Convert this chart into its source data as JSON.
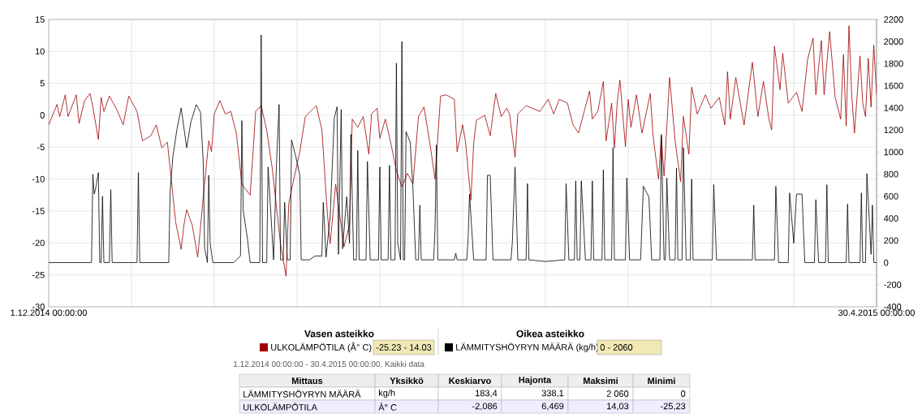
{
  "chart_data": {
    "type": "line",
    "grid": true,
    "legend": "bottom",
    "xlim": [
      "2014-12-01",
      "2015-04-30"
    ],
    "xticks": [
      {
        "value": "2014-12-01",
        "label": "1.12.2014 00:00:00"
      },
      {
        "value": "2014-12-16",
        "label": null
      },
      {
        "value": "2014-12-31",
        "label": null
      },
      {
        "value": "2015-01-15",
        "label": null
      },
      {
        "value": "2015-01-30",
        "label": null
      },
      {
        "value": "2015-02-14",
        "label": null
      },
      {
        "value": "2015-03-01",
        "label": null
      },
      {
        "value": "2015-03-16",
        "label": null
      },
      {
        "value": "2015-03-31",
        "label": null
      },
      {
        "value": "2015-04-15",
        "label": null
      },
      {
        "value": "2015-04-30",
        "label": "30.4.2015 00:00:00"
      }
    ],
    "ylim": [
      -30,
      15
    ],
    "yticks": [
      -30,
      -25,
      -20,
      -15,
      -10,
      -5,
      0,
      5,
      10,
      15
    ],
    "y2lim": [
      -400,
      2200
    ],
    "y2ticks": [
      -400,
      -200,
      0,
      200,
      400,
      600,
      800,
      1000,
      1200,
      1400,
      1600,
      1800,
      2000,
      2200
    ],
    "series": [
      {
        "name": "ULKOLÄMPÖTILA (Â° C)",
        "color": "#a00000",
        "x": [
          "2014-12-01",
          "2014-12-02",
          "2014-12-02T12:00",
          "2014-12-03",
          "2014-12-04",
          "2014-12-04T12:00",
          "2014-12-06",
          "2014-12-06T12:00",
          "2014-12-07T12:00",
          "2014-12-08T12:00",
          "2014-12-09",
          "2014-12-10",
          "2014-12-10T12:00",
          "2014-12-11",
          "2014-12-12",
          "2014-12-13T12:00",
          "2014-12-14T12:00",
          "2014-12-15T12:00",
          "2014-12-17",
          "2014-12-18",
          "2014-12-19T12:00",
          "2014-12-20T12:00",
          "2014-12-21T12:00",
          "2014-12-22T12:00",
          "2014-12-23",
          "2014-12-24",
          "2014-12-25",
          "2014-12-25T12:00",
          "2014-12-26",
          "2014-12-27",
          "2014-12-28",
          "2014-12-29",
          "2014-12-30",
          "2014-12-30T12:00",
          "2014-12-31",
          "2015-01-01",
          "2015-01-02",
          "2015-01-03",
          "2015-01-04",
          "2015-01-05",
          "2015-01-06T12:00",
          "2015-01-07",
          "2015-01-07T12:00",
          "2015-01-08T12:00",
          "2015-01-09T12:00",
          "2015-01-10T12:00",
          "2015-01-12",
          "2015-01-13",
          "2015-01-13T12:00",
          "2015-01-14",
          "2015-01-15T12:00",
          "2015-01-16T12:00",
          "2015-01-18",
          "2015-01-18T12:00",
          "2015-01-19T12:00",
          "2015-01-20T12:00",
          "2015-01-21",
          "2015-01-22",
          "2015-01-23T12:00",
          "2015-01-24T12:00",
          "2015-01-25",
          "2015-01-26",
          "2015-01-27",
          "2015-01-28",
          "2015-01-28T12:00",
          "2015-01-29T12:00",
          "2015-01-30",
          "2015-01-31",
          "2015-02-01",
          "2015-02-02",
          "2015-02-03",
          "2015-02-04",
          "2015-02-05",
          "2015-02-06",
          "2015-02-07",
          "2015-02-08",
          "2015-02-09",
          "2015-02-10",
          "2015-02-11",
          "2015-02-12T12:00",
          "2015-02-13",
          "2015-02-14",
          "2015-02-14T12:00",
          "2015-02-15T12:00",
          "2015-02-16",
          "2015-02-16T12:00",
          "2015-02-18",
          "2015-02-19",
          "2015-02-20",
          "2015-02-21",
          "2015-02-22",
          "2015-02-22T12:00",
          "2015-02-23T12:00",
          "2015-02-24",
          "2015-02-25T12:00",
          "2015-02-28",
          "2015-03-01T12:00",
          "2015-03-02T12:00",
          "2015-03-03T12:00",
          "2015-03-05",
          "2015-03-06",
          "2015-03-07",
          "2015-03-09",
          "2015-03-09T12:00",
          "2015-03-10T12:00",
          "2015-03-11T12:00",
          "2015-03-12",
          "2015-03-13",
          "2015-03-13T12:00",
          "2015-03-14",
          "2015-03-14T12:00",
          "2015-03-15T12:00",
          "2015-03-16",
          "2015-03-16T12:00",
          "2015-03-17T12:00",
          "2015-03-18T12:00",
          "2015-03-20",
          "2015-03-20T12:00",
          "2015-03-21T12:00",
          "2015-03-22",
          "2015-03-22T12:00",
          "2015-03-23T12:00",
          "2015-03-24T12:00",
          "2015-03-25T12:00",
          "2015-03-26",
          "2015-03-27",
          "2015-03-27T12:00",
          "2015-03-28T12:00",
          "2015-03-30",
          "2015-03-31",
          "2015-04-01T12:00",
          "2015-04-02T12:00",
          "2015-04-03",
          "2015-04-03T12:00",
          "2015-04-04T12:00",
          "2015-04-06",
          "2015-04-07T12:00",
          "2015-04-08T12:00",
          "2015-04-09T12:00",
          "2015-04-10T12:00",
          "2015-04-11",
          "2015-04-11T12:00",
          "2015-04-12T12:00",
          "2015-04-13",
          "2015-04-14",
          "2015-04-15T12:00",
          "2015-04-16T12:00",
          "2015-04-17T12:00",
          "2015-04-18T12:00",
          "2015-04-19",
          "2015-04-20",
          "2015-04-20T12:00",
          "2015-04-21T12:00",
          "2015-04-22T12:00",
          "2015-04-23T12:00",
          "2015-04-24",
          "2015-04-24T12:00",
          "2015-04-25",
          "2015-04-25T12:00",
          "2015-04-26",
          "2015-04-27",
          "2015-04-27T12:00",
          "2015-04-28",
          "2015-04-28T12:00",
          "2015-04-29",
          "2015-04-29T12:00",
          "2015-04-30"
        ],
        "values": [
          -1.5,
          0.6,
          1.7,
          -0.2,
          3.2,
          -0.2,
          3.2,
          -1.3,
          2.3,
          3.4,
          1.3,
          -3.8,
          2.8,
          0.6,
          3.0,
          0.6,
          -1.5,
          3.0,
          0.6,
          -4.0,
          -3.2,
          -1.5,
          -5.1,
          -4.2,
          -8.3,
          -16.7,
          -21.0,
          -17.2,
          -14.8,
          -17.2,
          -22.2,
          -12.9,
          -4.0,
          -5.7,
          0.2,
          2.3,
          0.2,
          0.6,
          -2.8,
          -10.8,
          -12.5,
          -6.1,
          0.6,
          1.5,
          -2.3,
          -8.3,
          -20.1,
          -25.2,
          -13.8,
          -11.7,
          -5.7,
          -0.2,
          1.1,
          1.5,
          -2.3,
          -15.5,
          -20.1,
          -10.8,
          -20.6,
          -17.2,
          -0.6,
          -1.9,
          -0.2,
          -6.1,
          0.2,
          1.1,
          -3.6,
          -0.6,
          -4.4,
          -8.7,
          -11.2,
          -9.1,
          -10.8,
          -0.2,
          1.3,
          -4.0,
          -10.0,
          3.0,
          3.2,
          2.5,
          -5.7,
          -1.5,
          -4.0,
          -13.3,
          -4.4,
          -0.8,
          0,
          -3.2,
          3.4,
          -0.2,
          1.1,
          0.2,
          -6.6,
          0.2,
          1.5,
          0.6,
          2.5,
          0.2,
          2.5,
          1.9,
          -1.5,
          -2.8,
          3.8,
          -0.6,
          0.6,
          5.3,
          -4.0,
          1.9,
          -5.1,
          1.9,
          5.5,
          -4.9,
          2.5,
          -1.9,
          3.2,
          -2.8,
          3.4,
          -3.2,
          -10.0,
          -3.2,
          -9.5,
          5.9,
          -4.0,
          -10.4,
          -0.2,
          -6.1,
          4.4,
          0.2,
          3.2,
          1.1,
          2.8,
          -1.5,
          6.8,
          -0.6,
          5.9,
          -1.5,
          8.3,
          -0.2,
          5.3,
          -0.6,
          -2.3,
          10.8,
          4.0,
          9.7,
          1.9,
          3.6,
          0.6,
          8.7,
          12.1,
          3.2,
          11.7,
          3.2,
          13.1,
          2.8,
          -0.6,
          9.5,
          -1.7,
          14.0,
          3.2,
          -2.8,
          9.3,
          1.9,
          -0.2,
          8.9,
          1.3,
          11.0,
          3.2
        ]
      },
      {
        "name": "LÄMMITYSHÖYRYN MÄÄRÄ (kg/h)",
        "color": "#000000",
        "axis": "y2",
        "x": [
          "2014-12-01",
          "2014-12-08T18:00",
          "2014-12-09",
          "2014-12-09T06:00",
          "2014-12-09T12:00",
          "2014-12-10",
          "2014-12-10T06:00",
          "2014-12-10T12:00",
          "2014-12-10T18:00",
          "2014-12-11",
          "2014-12-12",
          "2014-12-12T06:00",
          "2014-12-12T12:00",
          "2014-12-17",
          "2014-12-17T06:00",
          "2014-12-17T12:00",
          "2014-12-22T18:00",
          "2014-12-23",
          "2014-12-23T12:00",
          "2014-12-24T06:00",
          "2014-12-25",
          "2014-12-26",
          "2014-12-26T18:00",
          "2014-12-27T18:00",
          "2014-12-28T12:00",
          "2014-12-29",
          "2014-12-29T06:00",
          "2014-12-29T18:00",
          "2014-12-30",
          "2014-12-30T06:00",
          "2014-12-30T18:00",
          "2015-01-03T12:00",
          "2015-01-04T18:00",
          "2015-01-05",
          "2015-01-05T06:00",
          "2015-01-06",
          "2015-01-06T12:00",
          "2015-01-08T06:00",
          "2015-01-08T12:00",
          "2015-01-08T18:00",
          "2015-01-09T12:00",
          "2015-01-09T18:00",
          "2015-01-10T18:00",
          "2015-01-11T06:00",
          "2015-01-11T18:00",
          "2015-01-12",
          "2015-01-12T12:00",
          "2015-01-12T18:00",
          "2015-01-13T06:00",
          "2015-01-13T18:00",
          "2015-01-14",
          "2015-01-14T18:00",
          "2015-01-15T12:00",
          "2015-01-15T18:00",
          "2015-01-17T06:00",
          "2015-01-18T06:00",
          "2015-01-19T12:00",
          "2015-01-19T18:00",
          "2015-01-20T06:00",
          "2015-01-21",
          "2015-01-21T12:00",
          "2015-01-21T18:00",
          "2015-01-22T06:00",
          "2015-01-22T12:00",
          "2015-01-23",
          "2015-01-23T06:00",
          "2015-01-24",
          "2015-01-24T12:00",
          "2015-01-24T18:00",
          "2015-01-25T06:00",
          "2015-01-25T18:00",
          "2015-01-26",
          "2015-01-26T06:00",
          "2015-01-27T12:00",
          "2015-01-27T18:00",
          "2015-01-28T06:00",
          "2015-01-29T18:00",
          "2015-01-30",
          "2015-01-30T06:00",
          "2015-01-31T12:00",
          "2015-01-31T18:00",
          "2015-02-01",
          "2015-02-01T18:00",
          "2015-02-02",
          "2015-02-02T06:00",
          "2015-02-02T18:00",
          "2015-02-03",
          "2015-02-03T06:00",
          "2015-02-03T12:00",
          "2015-02-03T18:00",
          "2015-02-04T12:00",
          "2015-02-05",
          "2015-02-05T12:00",
          "2015-02-06",
          "2015-02-06T06:00",
          "2015-02-06T12:00",
          "2015-02-08T18:00",
          "2015-02-09",
          "2015-02-09T06:00",
          "2015-02-09T12:00",
          "2015-02-12T12:00",
          "2015-02-12T18:00",
          "2015-02-13",
          "2015-02-14T18:00",
          "2015-02-15",
          "2015-02-15T06:00",
          "2015-02-16",
          "2015-02-18T06:00",
          "2015-02-18T12:00",
          "2015-02-19",
          "2015-02-19T12:00",
          "2015-02-22T18:00",
          "2015-02-23",
          "2015-02-23T12:00",
          "2015-02-24",
          "2015-02-25T12:00",
          "2015-02-25T18:00",
          "2015-02-26",
          "2015-03-01",
          "2015-03-04T12:00",
          "2015-03-04T18:00",
          "2015-03-05T06:00",
          "2015-03-06T06:00",
          "2015-03-06T12:00",
          "2015-03-06T18:00",
          "2015-03-07T06:00",
          "2015-03-07T12:00",
          "2015-03-08T06:00",
          "2015-03-09T06:00",
          "2015-03-09T12:00",
          "2015-03-09T18:00",
          "2015-03-11T06:00",
          "2015-03-11T12:00",
          "2015-03-11T18:00",
          "2015-03-13",
          "2015-03-13T06:00",
          "2015-03-13T12:00",
          "2015-03-15T12:00",
          "2015-03-15T18:00",
          "2015-03-16T06:00",
          "2015-03-18T06:00",
          "2015-03-18T18:00",
          "2015-03-19T18:00",
          "2015-03-20T06:00",
          "2015-03-21T18:00",
          "2015-03-22",
          "2015-03-22T12:00",
          "2015-03-22T18:00",
          "2015-03-23",
          "2015-03-23T12:00",
          "2015-03-24T12:00",
          "2015-03-24T18:00",
          "2015-03-25",
          "2015-03-25T18:00",
          "2015-03-26",
          "2015-03-26T12:00",
          "2015-03-27T06:00",
          "2015-03-27T12:00",
          "2015-03-27T18:00",
          "2015-03-31T06:00",
          "2015-03-31T12:00",
          "2015-04-01",
          "2015-04-07T12:00",
          "2015-04-07T18:00",
          "2015-04-08",
          "2015-04-11T12:00",
          "2015-04-11T18:00",
          "2015-04-12T06:00",
          "2015-04-14",
          "2015-04-14T06:00",
          "2015-04-15",
          "2015-04-15T12:00",
          "2015-04-16T12:00",
          "2015-04-17",
          "2015-04-18T18:00",
          "2015-04-19",
          "2015-04-19T12:00",
          "2015-04-20T18:00",
          "2015-04-21",
          "2015-04-21T06:00",
          "2015-04-24T12:00",
          "2015-04-24T18:00",
          "2015-04-25",
          "2015-04-27",
          "2015-04-27T06:00",
          "2015-04-27T12:00",
          "2015-04-28",
          "2015-04-28T06:00",
          "2015-04-29",
          "2015-04-29T06:00",
          "2015-04-29T12:00",
          "2015-04-30"
        ],
        "values": [
          0,
          0,
          800,
          620,
          670,
          815,
          0,
          0,
          600,
          0,
          0,
          660,
          0,
          0,
          815,
          0,
          0,
          640,
          960,
          1210,
          1400,
          1040,
          1270,
          1430,
          1360,
          915,
          135,
          0,
          790,
          175,
          0,
          0,
          60,
          1285,
          470,
          220,
          0,
          0,
          2060,
          0,
          0,
          865,
          25,
          865,
          1430,
          25,
          25,
          545,
          25,
          25,
          1110,
          965,
          790,
          25,
          25,
          60,
          60,
          545,
          50,
          420,
          1015,
          1310,
          1410,
          75,
          1385,
          125,
          595,
          175,
          1160,
          25,
          25,
          1015,
          25,
          25,
          915,
          25,
          25,
          865,
          25,
          25,
          880,
          25,
          25,
          1805,
          175,
          25,
          2000,
          25,
          25,
          1185,
          1090,
          670,
          25,
          25,
          520,
          25,
          25,
          310,
          1065,
          25,
          25,
          85,
          25,
          25,
          220,
          620,
          25,
          25,
          790,
          790,
          25,
          25,
          175,
          865,
          25,
          25,
          715,
          25,
          10,
          25,
          715,
          25,
          25,
          740,
          25,
          25,
          740,
          25,
          25,
          740,
          25,
          25,
          840,
          25,
          25,
          1040,
          25,
          25,
          765,
          25,
          25,
          690,
          595,
          25,
          25,
          1160,
          25,
          25,
          765,
          25,
          25,
          855,
          25,
          25,
          1040,
          25,
          25,
          755,
          25,
          25,
          705,
          25,
          25,
          520,
          25,
          25,
          690,
          0,
          0,
          630,
          175,
          620,
          620,
          0,
          0,
          570,
          0,
          0,
          705,
          0,
          0,
          530,
          0,
          0,
          630,
          0,
          0,
          805,
          75,
          520,
          0,
          0
        ]
      }
    ],
    "annotations": [
      "Vasen asteikko",
      "-25.23 - 14.03",
      "Oikea asteikko",
      "0 - 2060",
      "1.12.2014 00:00:00 - 30.4.2015 00:00:00, Kaikki data",
      "Mittaus",
      "Yksikkö",
      "Keskiarvo",
      "Hajonta",
      "Maksimi",
      "Minimi",
      "LÄMMITYSHÖYRYN MÄÄRÄ",
      "kg/h",
      "183,4",
      "338,1",
      "2 060",
      "0",
      "ULKOLÄMPÖTILA",
      "Â° C",
      "-2,086",
      "6,469",
      "14,03",
      "-25,23"
    ]
  }
}
